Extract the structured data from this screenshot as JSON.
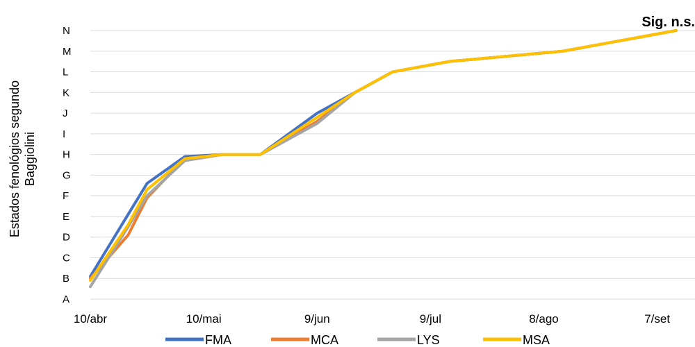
{
  "chart_data": {
    "type": "line",
    "ylabel_lines": [
      "Estados fenológios segundo",
      "Baggiolini"
    ],
    "annotation": "Sig. n.s.",
    "y_categories": [
      "A",
      "B",
      "C",
      "D",
      "E",
      "F",
      "G",
      "H",
      "I",
      "J",
      "K",
      "L",
      "M",
      "N"
    ],
    "x_tick_labels": [
      "10/abr",
      "10/mai",
      "9/jun",
      "9/jul",
      "8/ago",
      "7/set"
    ],
    "x_tick_days": [
      0,
      30,
      60,
      90,
      120,
      150
    ],
    "xlim_days": [
      0,
      160
    ],
    "ylim_index": [
      0,
      13
    ],
    "grid": true,
    "legend_position": "bottom",
    "x_days": [
      0,
      10,
      15,
      25,
      35,
      45,
      60,
      70,
      80,
      95,
      125,
      155
    ],
    "series": [
      {
        "name": "FMA",
        "color": "#4472C4",
        "values": [
          1.1,
          4.1,
          5.6,
          6.9,
          7.0,
          7.0,
          9.0,
          10.0,
          11.0,
          11.5,
          12.0,
          13.0
        ]
      },
      {
        "name": "MCA",
        "color": "#ED7D31",
        "values": [
          1.0,
          3.1,
          4.9,
          6.8,
          7.0,
          7.0,
          8.6,
          10.0,
          11.0,
          11.5,
          12.0,
          13.0
        ]
      },
      {
        "name": "LYS",
        "color": "#A5A5A5",
        "values": [
          0.6,
          3.5,
          5.0,
          6.7,
          7.0,
          7.0,
          8.5,
          10.0,
          11.0,
          11.5,
          12.0,
          13.0
        ]
      },
      {
        "name": "MSA",
        "color": "#FFC000",
        "values": [
          0.9,
          3.6,
          5.3,
          6.8,
          7.0,
          7.0,
          8.8,
          10.0,
          11.0,
          11.5,
          12.0,
          13.0
        ]
      }
    ]
  }
}
